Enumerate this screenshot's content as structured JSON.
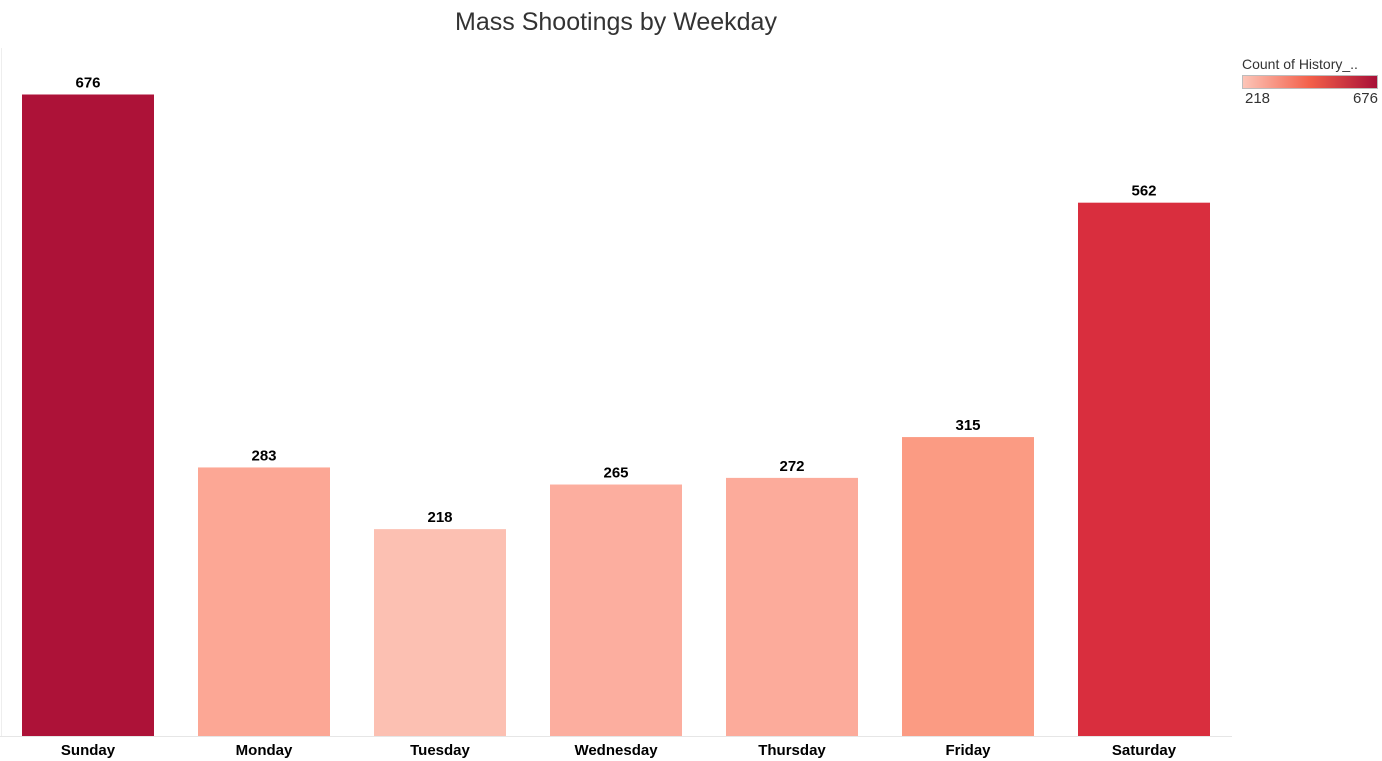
{
  "chart_data": {
    "type": "bar",
    "title": "Mass Shootings by Weekday",
    "xlabel": "",
    "ylabel": "",
    "categories": [
      "Sunday",
      "Monday",
      "Tuesday",
      "Wednesday",
      "Thursday",
      "Friday",
      "Saturday"
    ],
    "values": [
      676,
      283,
      218,
      265,
      272,
      315,
      562
    ],
    "ylim": [
      0,
      725
    ],
    "grid": false,
    "data_labels": true,
    "legend": {
      "title": "Count of History_..",
      "min_label": "218",
      "max_label": "676",
      "placement": "top-right",
      "color_low": "#fcc5b8",
      "color_mid": "#f3604a",
      "color_high": "#a81038"
    },
    "bar_colors": [
      "#ad1238",
      "#fca795",
      "#fcc0b2",
      "#fcae9f",
      "#fcab9b",
      "#fb9b83",
      "#d92e3e"
    ]
  }
}
